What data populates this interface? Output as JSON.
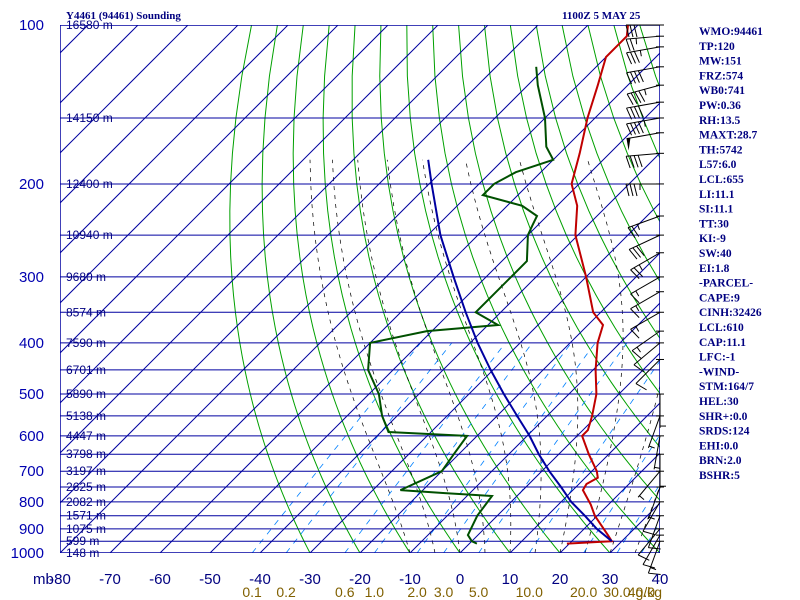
{
  "header": {
    "title_left": "Y4461 (94461) Sounding",
    "title_right": "1100Z  5 MAY 25"
  },
  "chart_data": {
    "type": "line",
    "axes": {
      "y_unit_label": "mb",
      "pressure_ticks": [
        100,
        200,
        300,
        400,
        500,
        600,
        700,
        800,
        900,
        1000
      ],
      "pressure_range_mb": [
        100,
        1000
      ],
      "y_scale": "log",
      "temperature_ticks": [
        -80,
        -70,
        -60,
        -50,
        -40,
        -30,
        -20,
        -10,
        0,
        10,
        20,
        30,
        40
      ],
      "temperature_range_c": [
        -80,
        40
      ],
      "temperature_skew": "45°",
      "mixing_ratio_unit": "g/kg",
      "mixing_ratio_ticks": [
        "0.1",
        "0.2",
        "0.6",
        "1.0",
        "2.0",
        "3.0",
        "5.0",
        "10.0",
        "20.0",
        "30.0",
        "40.0"
      ],
      "height_labels": [
        {
          "p": 100,
          "label": "16580 m"
        },
        {
          "p": 150,
          "label": "14150 m"
        },
        {
          "p": 200,
          "label": "12400 m"
        },
        {
          "p": 250,
          "label": "10940 m"
        },
        {
          "p": 300,
          "label": "9680 m"
        },
        {
          "p": 350,
          "label": "8574 m"
        },
        {
          "p": 400,
          "label": "7590 m"
        },
        {
          "p": 450,
          "label": "6701 m"
        },
        {
          "p": 500,
          "label": "5890 m"
        },
        {
          "p": 550,
          "label": "5138 m"
        },
        {
          "p": 600,
          "label": "4447 m"
        },
        {
          "p": 650,
          "label": "3798 m"
        },
        {
          "p": 700,
          "label": "3197 m"
        },
        {
          "p": 750,
          "label": "2625 m"
        },
        {
          "p": 800,
          "label": "2082 m"
        },
        {
          "p": 850,
          "label": "1571 m"
        },
        {
          "p": 900,
          "label": "1075 m"
        },
        {
          "p": 950,
          "label": "599 m"
        },
        {
          "p": 1000,
          "label": "148 m"
        }
      ],
      "grid": true
    },
    "colors": {
      "isobar": "#0000a0",
      "isotherm": "#0000a0",
      "dry_adiabat": "#00a000",
      "moist_adiabat": "#000000",
      "mixing_ratio": "#0080ff",
      "temperature": "#c00000",
      "dewpoint": "#005000",
      "parcel": "#0000a0"
    },
    "series": [
      {
        "key": "temperature",
        "points": [
          {
            "p": 960,
            "t": 19.5
          },
          {
            "p": 950,
            "t": 28.0
          },
          {
            "p": 925,
            "t": 26.0
          },
          {
            "p": 850,
            "t": 19.5
          },
          {
            "p": 810,
            "t": 16.5
          },
          {
            "p": 760,
            "t": 12.0
          },
          {
            "p": 740,
            "t": 11.5
          },
          {
            "p": 720,
            "t": 12.5
          },
          {
            "p": 700,
            "t": 11.0
          },
          {
            "p": 650,
            "t": 6.0
          },
          {
            "p": 600,
            "t": 1.0
          },
          {
            "p": 585,
            "t": 1.0
          },
          {
            "p": 550,
            "t": -1.0
          },
          {
            "p": 500,
            "t": -4.5
          },
          {
            "p": 450,
            "t": -9.5
          },
          {
            "p": 400,
            "t": -14.5
          },
          {
            "p": 370,
            "t": -17.0
          },
          {
            "p": 350,
            "t": -21.5
          },
          {
            "p": 300,
            "t": -30.0
          },
          {
            "p": 250,
            "t": -40.5
          },
          {
            "p": 220,
            "t": -46.0
          },
          {
            "p": 200,
            "t": -51.5
          },
          {
            "p": 175,
            "t": -56.0
          },
          {
            "p": 150,
            "t": -61.5
          },
          {
            "p": 130,
            "t": -66.0
          },
          {
            "p": 115,
            "t": -70.0
          },
          {
            "p": 105,
            "t": -70.0
          },
          {
            "p": 100,
            "t": -72.0
          }
        ]
      },
      {
        "key": "dewpoint",
        "points": [
          {
            "p": 960,
            "t": 1.5
          },
          {
            "p": 950,
            "t": 0.0
          },
          {
            "p": 925,
            "t": -2.0
          },
          {
            "p": 850,
            "t": -4.0
          },
          {
            "p": 780,
            "t": -5.0
          },
          {
            "p": 770,
            "t": -15.0
          },
          {
            "p": 760,
            "t": -24.5
          },
          {
            "p": 700,
            "t": -20.0
          },
          {
            "p": 650,
            "t": -21.0
          },
          {
            "p": 600,
            "t": -22.0
          },
          {
            "p": 590,
            "t": -38.5
          },
          {
            "p": 550,
            "t": -43.0
          },
          {
            "p": 500,
            "t": -48.0
          },
          {
            "p": 450,
            "t": -55.0
          },
          {
            "p": 400,
            "t": -60.0
          },
          {
            "p": 380,
            "t": -51.0
          },
          {
            "p": 370,
            "t": -38.0
          },
          {
            "p": 350,
            "t": -45.0
          },
          {
            "p": 300,
            "t": -45.0
          },
          {
            "p": 280,
            "t": -45.0
          },
          {
            "p": 250,
            "t": -50.0
          },
          {
            "p": 240,
            "t": -51.0
          },
          {
            "p": 230,
            "t": -52.0
          },
          {
            "p": 220,
            "t": -57.0
          },
          {
            "p": 210,
            "t": -67.0
          },
          {
            "p": 200,
            "t": -67.0
          },
          {
            "p": 190,
            "t": -65.0
          },
          {
            "p": 180,
            "t": -60.0
          },
          {
            "p": 170,
            "t": -64.0
          },
          {
            "p": 150,
            "t": -70.0
          },
          {
            "p": 130,
            "t": -78.0
          },
          {
            "p": 120,
            "t": -82.0
          }
        ]
      },
      {
        "key": "parcel",
        "points": [
          {
            "p": 950,
            "t": 28.0
          },
          {
            "p": 900,
            "t": 22.5
          },
          {
            "p": 850,
            "t": 17.5
          },
          {
            "p": 800,
            "t": 12.0
          },
          {
            "p": 750,
            "t": 7.0
          },
          {
            "p": 700,
            "t": 1.5
          },
          {
            "p": 650,
            "t": -4.0
          },
          {
            "p": 600,
            "t": -9.5
          },
          {
            "p": 550,
            "t": -16.0
          },
          {
            "p": 500,
            "t": -23.0
          },
          {
            "p": 450,
            "t": -30.5
          },
          {
            "p": 400,
            "t": -38.5
          },
          {
            "p": 350,
            "t": -47.0
          },
          {
            "p": 300,
            "t": -56.5
          },
          {
            "p": 250,
            "t": -67.5
          },
          {
            "p": 200,
            "t": -79.5
          },
          {
            "p": 180,
            "t": -85.0
          }
        ]
      }
    ],
    "wind_barbs": [
      {
        "p": 100,
        "dir": 270,
        "kt": 30
      },
      {
        "p": 105,
        "dir": 265,
        "kt": 25
      },
      {
        "p": 110,
        "dir": 260,
        "kt": 35
      },
      {
        "p": 120,
        "dir": 260,
        "kt": 40
      },
      {
        "p": 130,
        "dir": 255,
        "kt": 45
      },
      {
        "p": 140,
        "dir": 260,
        "kt": 40
      },
      {
        "p": 150,
        "dir": 260,
        "kt": 45
      },
      {
        "p": 160,
        "dir": 260,
        "kt": 50
      },
      {
        "p": 175,
        "dir": 265,
        "kt": 40
      },
      {
        "p": 200,
        "dir": 270,
        "kt": 35
      },
      {
        "p": 230,
        "dir": 250,
        "kt": 25
      },
      {
        "p": 250,
        "dir": 245,
        "kt": 30
      },
      {
        "p": 270,
        "dir": 240,
        "kt": 25
      },
      {
        "p": 300,
        "dir": 240,
        "kt": 15
      },
      {
        "p": 320,
        "dir": 240,
        "kt": 15
      },
      {
        "p": 350,
        "dir": 240,
        "kt": 15
      },
      {
        "p": 380,
        "dir": 235,
        "kt": 15
      },
      {
        "p": 400,
        "dir": 230,
        "kt": 10
      },
      {
        "p": 430,
        "dir": 225,
        "kt": 10
      },
      {
        "p": 500,
        "dir": 180,
        "kt": 5
      },
      {
        "p": 550,
        "dir": 200,
        "kt": 5
      },
      {
        "p": 600,
        "dir": 190,
        "kt": 5
      },
      {
        "p": 650,
        "dir": 180,
        "kt": 5
      },
      {
        "p": 700,
        "dir": 220,
        "kt": 5
      },
      {
        "p": 750,
        "dir": 200,
        "kt": 5
      },
      {
        "p": 800,
        "dir": 210,
        "kt": 10
      },
      {
        "p": 850,
        "dir": 200,
        "kt": 10
      },
      {
        "p": 900,
        "dir": 220,
        "kt": 10
      },
      {
        "p": 925,
        "dir": 210,
        "kt": 10
      },
      {
        "p": 950,
        "dir": 200,
        "kt": 15
      }
    ]
  },
  "indices": [
    "WMO:94461",
    "TP:120",
    "MW:151",
    "FRZ:574",
    "WB0:741",
    "PW:0.36",
    "RH:13.5",
    "MAXT:28.7",
    "TH:5742",
    "L57:6.0",
    "LCL:655",
    "LI:11.1",
    "SI:11.1",
    "TT:30",
    "KI:-9",
    "SW:40",
    "EI:1.8",
    "-PARCEL-",
    "CAPE:9",
    "CINH:32426",
    "LCL:610",
    "CAP:11.1",
    "LFC:-1",
    "-WIND-",
    "STM:164/7",
    "HEL:30",
    "SHR+:0.0",
    "SRDS:124",
    "EHI:0.0",
    "BRN:2.0",
    "BSHR:5"
  ]
}
